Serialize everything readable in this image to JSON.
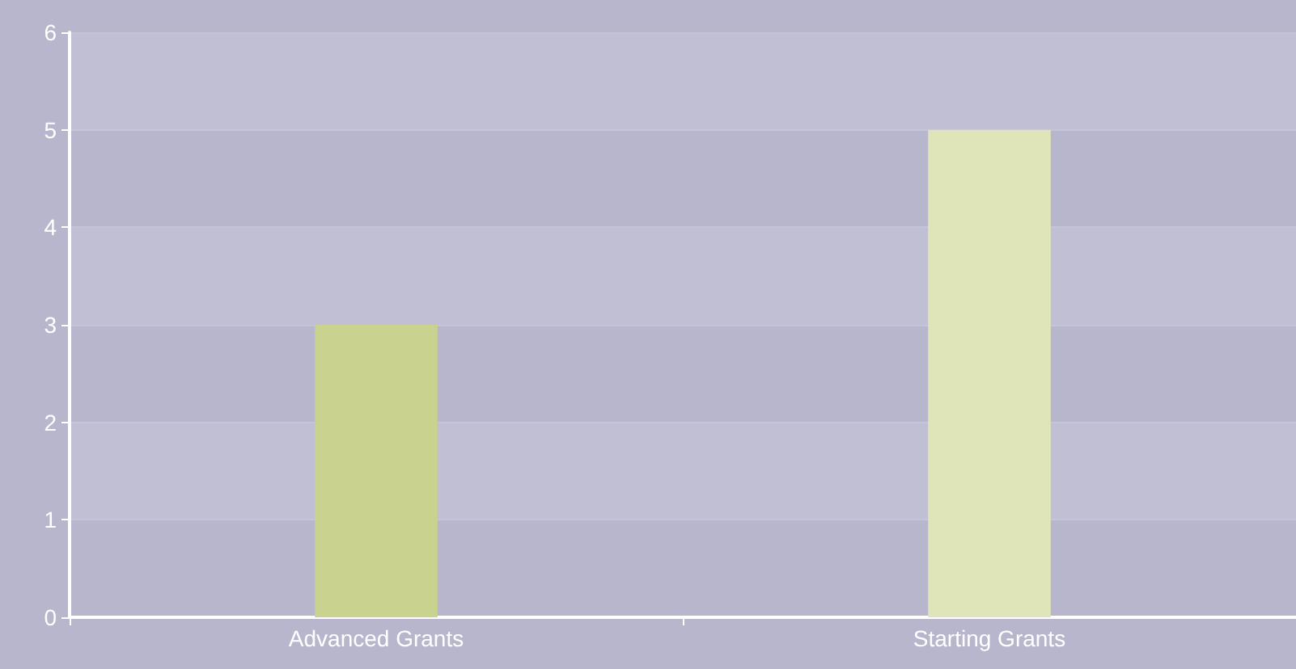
{
  "chart_data": {
    "type": "bar",
    "categories": [
      "Advanced Grants",
      "Starting Grants"
    ],
    "values": [
      3,
      5
    ],
    "colors": [
      "#c9d28f",
      "#dfe5b8"
    ],
    "ylim": [
      0,
      6
    ],
    "yticks": [
      0,
      1,
      2,
      3,
      4,
      5,
      6
    ],
    "grid": "y"
  }
}
